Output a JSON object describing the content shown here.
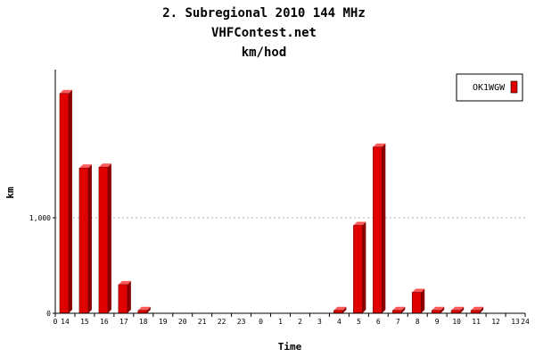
{
  "chart_data": {
    "type": "bar",
    "title": "2. Subregional 2010 144 MHz",
    "subtitle": "VHFContest.net",
    "unit_line": "km/hod",
    "xlabel": "Time",
    "ylabel": "km",
    "categories": [
      "14",
      "15",
      "16",
      "17",
      "18",
      "19",
      "20",
      "21",
      "22",
      "23",
      "0",
      "1",
      "2",
      "3",
      "4",
      "5",
      "6",
      "7",
      "8",
      "9",
      "10",
      "11",
      "12",
      "13"
    ],
    "x_axis_start_label": "0",
    "x_axis_end_label": "24",
    "series": [
      {
        "name": "OK1WGW",
        "color": "#e00000",
        "values": [
          2300,
          1520,
          1530,
          300,
          30,
          0,
          0,
          0,
          0,
          0,
          0,
          0,
          0,
          0,
          30,
          920,
          1740,
          30,
          220,
          30,
          30,
          30,
          0,
          0
        ]
      }
    ],
    "ylim": [
      0,
      2550
    ],
    "yticks": [
      {
        "value": 0,
        "label": "0"
      },
      {
        "value": 1000,
        "label": "1,000"
      }
    ],
    "grid": "dotted-horizontal",
    "legend_position": "top-right"
  }
}
